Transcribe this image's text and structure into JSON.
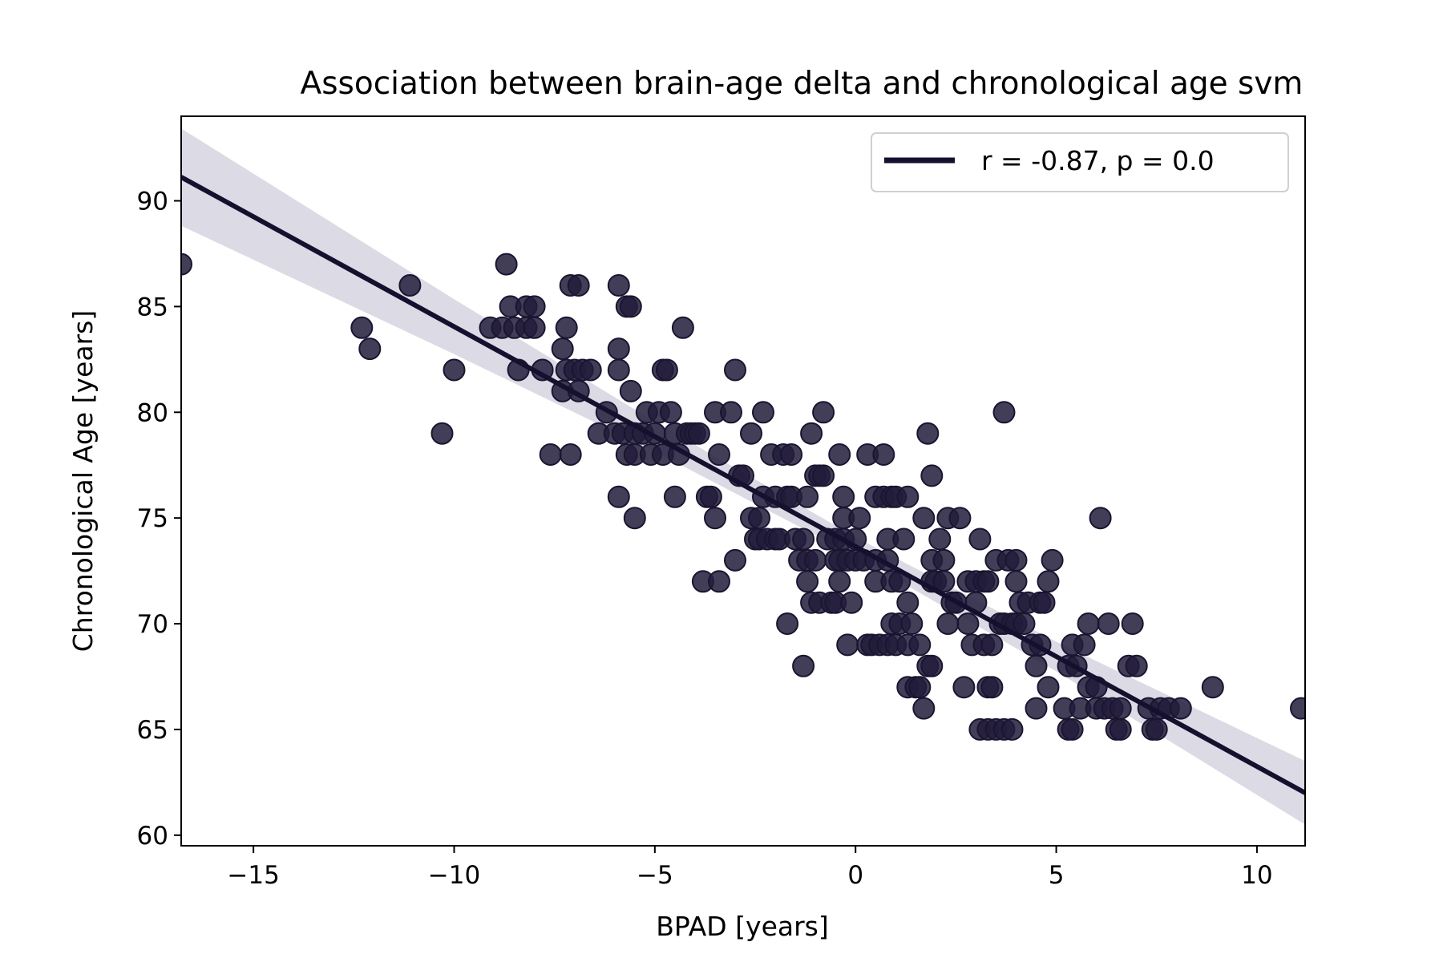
{
  "chart_data": {
    "type": "scatter",
    "title": "Association between brain-age delta and chronological age svm",
    "xlabel": "BPAD [years]",
    "ylabel": "Chronological Age [years]",
    "xlim": [
      -16.8,
      11.2
    ],
    "ylim": [
      59.5,
      94
    ],
    "xticks": [
      -15,
      -10,
      -5,
      0,
      5,
      10
    ],
    "xtick_labels": [
      "−15",
      "−10",
      "−5",
      "0",
      "5",
      "10"
    ],
    "yticks": [
      60,
      65,
      70,
      75,
      80,
      85,
      90
    ],
    "ytick_labels": [
      "60",
      "65",
      "70",
      "75",
      "80",
      "85",
      "90"
    ],
    "grid": false,
    "legend": {
      "placement": "top-right",
      "entries": [
        "r = -0.87, p = 0.0"
      ]
    },
    "colors": {
      "points": "#221c3b",
      "line": "#14102e",
      "ci_band": "#dcdae4"
    },
    "regression": {
      "slope": -1.04,
      "intercept": 73.65,
      "band": [
        [
          -16.8,
          2.3
        ],
        [
          -10,
          1.3
        ],
        [
          -5,
          0.7
        ],
        [
          0,
          0.45
        ],
        [
          5,
          0.7
        ],
        [
          11.2,
          1.5
        ]
      ]
    },
    "series": [
      {
        "points": [
          [
            -16.8,
            87
          ],
          [
            -12.3,
            84
          ],
          [
            -12.1,
            83
          ],
          [
            -11.1,
            86
          ],
          [
            -10.3,
            79
          ],
          [
            -10,
            82
          ],
          [
            -9.1,
            84
          ],
          [
            -8.8,
            84
          ],
          [
            -8.7,
            87
          ],
          [
            -8.6,
            85
          ],
          [
            -8.5,
            84
          ],
          [
            -8.4,
            82
          ],
          [
            -8.2,
            85
          ],
          [
            -8.2,
            84
          ],
          [
            -8,
            85
          ],
          [
            -8,
            84
          ],
          [
            -7.8,
            82
          ],
          [
            -7.6,
            78
          ],
          [
            -7.3,
            83
          ],
          [
            -7.3,
            81
          ],
          [
            -7.2,
            84
          ],
          [
            -7.2,
            82
          ],
          [
            -7.1,
            78
          ],
          [
            -7.1,
            86
          ],
          [
            -7,
            82
          ],
          [
            -6.9,
            86
          ],
          [
            -6.9,
            81
          ],
          [
            -6.8,
            82
          ],
          [
            -6.6,
            82
          ],
          [
            -6.4,
            79
          ],
          [
            -6.2,
            80
          ],
          [
            -6,
            79
          ],
          [
            -5.9,
            86
          ],
          [
            -5.9,
            83
          ],
          [
            -5.9,
            82
          ],
          [
            -5.9,
            76
          ],
          [
            -5.8,
            79
          ],
          [
            -5.7,
            85
          ],
          [
            -5.7,
            78
          ],
          [
            -5.6,
            85
          ],
          [
            -5.6,
            81
          ],
          [
            -5.5,
            79
          ],
          [
            -5.5,
            78
          ],
          [
            -5.5,
            75
          ],
          [
            -5.3,
            79
          ],
          [
            -5.2,
            80
          ],
          [
            -5.1,
            78
          ],
          [
            -5,
            79
          ],
          [
            -4.9,
            80
          ],
          [
            -4.8,
            82
          ],
          [
            -4.8,
            78
          ],
          [
            -4.7,
            82
          ],
          [
            -4.6,
            80
          ],
          [
            -4.5,
            79
          ],
          [
            -4.5,
            76
          ],
          [
            -4.4,
            78
          ],
          [
            -4.3,
            84
          ],
          [
            -4.2,
            79
          ],
          [
            -4.1,
            79
          ],
          [
            -4,
            79
          ],
          [
            -3.9,
            79
          ],
          [
            -3.8,
            72
          ],
          [
            -3.7,
            76
          ],
          [
            -3.6,
            76
          ],
          [
            -3.5,
            80
          ],
          [
            -3.5,
            75
          ],
          [
            -3.4,
            72
          ],
          [
            -3.4,
            78
          ],
          [
            -3.1,
            80
          ],
          [
            -3,
            82
          ],
          [
            -3,
            73
          ],
          [
            -2.9,
            77
          ],
          [
            -2.8,
            77
          ],
          [
            -2.6,
            75
          ],
          [
            -2.6,
            79
          ],
          [
            -2.5,
            74
          ],
          [
            -2.4,
            75
          ],
          [
            -2.4,
            74
          ],
          [
            -2.3,
            80
          ],
          [
            -2.3,
            76
          ],
          [
            -2.2,
            74
          ],
          [
            -2.1,
            78
          ],
          [
            -2,
            76
          ],
          [
            -2,
            74
          ],
          [
            -1.9,
            74
          ],
          [
            -1.8,
            78
          ],
          [
            -1.7,
            76
          ],
          [
            -1.7,
            70
          ],
          [
            -1.6,
            78
          ],
          [
            -1.6,
            76
          ],
          [
            -1.5,
            74
          ],
          [
            -1.4,
            73
          ],
          [
            -1.3,
            68
          ],
          [
            -1.3,
            74
          ],
          [
            -1.2,
            72
          ],
          [
            -1.2,
            76
          ],
          [
            -1.2,
            73
          ],
          [
            -1.1,
            79
          ],
          [
            -1.1,
            71
          ],
          [
            -1,
            77
          ],
          [
            -1,
            73
          ],
          [
            -0.9,
            71
          ],
          [
            -0.9,
            77
          ],
          [
            -0.8,
            80
          ],
          [
            -0.8,
            77
          ],
          [
            -0.7,
            74
          ],
          [
            -0.6,
            71
          ],
          [
            -0.5,
            73
          ],
          [
            -0.5,
            74
          ],
          [
            -0.4,
            73
          ],
          [
            -0.5,
            71
          ],
          [
            -0.4,
            78
          ],
          [
            -0.4,
            72
          ],
          [
            -0.3,
            74
          ],
          [
            -0.3,
            75
          ],
          [
            -0.3,
            76
          ],
          [
            -0.2,
            73
          ],
          [
            -0.2,
            69
          ],
          [
            -0.1,
            71
          ],
          [
            0,
            74
          ],
          [
            0,
            73
          ],
          [
            0.1,
            75
          ],
          [
            0.2,
            73
          ],
          [
            0.3,
            78
          ],
          [
            0.3,
            69
          ],
          [
            0.4,
            69
          ],
          [
            0.5,
            73
          ],
          [
            0.5,
            72
          ],
          [
            0.5,
            76
          ],
          [
            0.6,
            69
          ],
          [
            0.7,
            78
          ],
          [
            0.7,
            76
          ],
          [
            0.8,
            74
          ],
          [
            0.8,
            69
          ],
          [
            0.8,
            73
          ],
          [
            0.9,
            72
          ],
          [
            0.9,
            76
          ],
          [
            0.9,
            70
          ],
          [
            1,
            69
          ],
          [
            1,
            76
          ],
          [
            1.1,
            72
          ],
          [
            1.1,
            70
          ],
          [
            1.2,
            74
          ],
          [
            1.3,
            71
          ],
          [
            1.3,
            69
          ],
          [
            1.3,
            76
          ],
          [
            1.3,
            67
          ],
          [
            1.4,
            70
          ],
          [
            1.5,
            67
          ],
          [
            1.6,
            69
          ],
          [
            1.6,
            67
          ],
          [
            1.7,
            75
          ],
          [
            1.7,
            66
          ],
          [
            1.8,
            79
          ],
          [
            1.8,
            68
          ],
          [
            1.9,
            73
          ],
          [
            1.9,
            72
          ],
          [
            1.9,
            68
          ],
          [
            1.9,
            77
          ],
          [
            2,
            72
          ],
          [
            2.1,
            74
          ],
          [
            2.2,
            72
          ],
          [
            2.2,
            73
          ],
          [
            2.3,
            75
          ],
          [
            2.3,
            70
          ],
          [
            2.4,
            71
          ],
          [
            2.5,
            71
          ],
          [
            2.6,
            75
          ],
          [
            2.7,
            67
          ],
          [
            2.8,
            70
          ],
          [
            2.8,
            72
          ],
          [
            2.9,
            69
          ],
          [
            3,
            72
          ],
          [
            3,
            71
          ],
          [
            3.1,
            74
          ],
          [
            3.1,
            65
          ],
          [
            3.2,
            69
          ],
          [
            3.2,
            72
          ],
          [
            3.3,
            67
          ],
          [
            3.3,
            65
          ],
          [
            3.3,
            72
          ],
          [
            3.4,
            69
          ],
          [
            3.4,
            67
          ],
          [
            3.5,
            65
          ],
          [
            3.5,
            73
          ],
          [
            3.6,
            70
          ],
          [
            3.7,
            70
          ],
          [
            3.7,
            65
          ],
          [
            3.7,
            80
          ],
          [
            3.8,
            73
          ],
          [
            3.9,
            70
          ],
          [
            3.9,
            65
          ],
          [
            4,
            73
          ],
          [
            4,
            72
          ],
          [
            4,
            70
          ],
          [
            4.1,
            71
          ],
          [
            4.2,
            70
          ],
          [
            4.3,
            71
          ],
          [
            4.4,
            69
          ],
          [
            4.5,
            68
          ],
          [
            4.5,
            66
          ],
          [
            4.6,
            71
          ],
          [
            4.6,
            69
          ],
          [
            4.7,
            71
          ],
          [
            4.8,
            67
          ],
          [
            4.8,
            72
          ],
          [
            4.9,
            73
          ],
          [
            5.2,
            66
          ],
          [
            5.3,
            65
          ],
          [
            5.3,
            68
          ],
          [
            5.4,
            69
          ],
          [
            5.4,
            65
          ],
          [
            5.5,
            68
          ],
          [
            5.6,
            66
          ],
          [
            5.7,
            69
          ],
          [
            5.8,
            70
          ],
          [
            5.8,
            67
          ],
          [
            6,
            67
          ],
          [
            6.1,
            75
          ],
          [
            6,
            66
          ],
          [
            6.2,
            66
          ],
          [
            6.3,
            70
          ],
          [
            6.4,
            66
          ],
          [
            6.5,
            65
          ],
          [
            6.6,
            66
          ],
          [
            6.6,
            65
          ],
          [
            6.8,
            68
          ],
          [
            6.9,
            70
          ],
          [
            7,
            68
          ],
          [
            7.3,
            66
          ],
          [
            7.4,
            65
          ],
          [
            7.5,
            65
          ],
          [
            7.6,
            66
          ],
          [
            7.8,
            66
          ],
          [
            8.1,
            66
          ],
          [
            8.9,
            67
          ],
          [
            11.1,
            66
          ]
        ]
      }
    ]
  }
}
